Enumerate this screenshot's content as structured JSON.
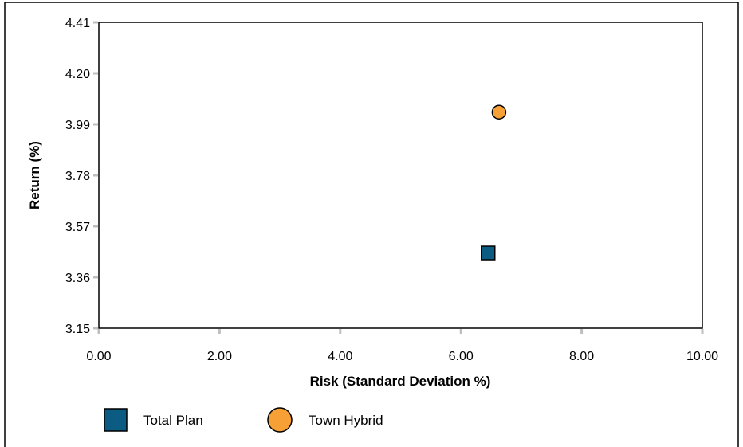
{
  "chart_data": {
    "type": "scatter",
    "title": "",
    "xlabel": "Risk (Standard Deviation %)",
    "ylabel": "Return (%)",
    "xlim": [
      0,
      10
    ],
    "ylim": [
      3.15,
      4.41
    ],
    "x_ticks": [
      0,
      2,
      4,
      6,
      8,
      10
    ],
    "x_tick_labels": [
      "0.00",
      "2.00",
      "4.00",
      "6.00",
      "8.00",
      "10.00"
    ],
    "y_ticks": [
      3.15,
      3.36,
      3.57,
      3.78,
      3.99,
      4.2,
      4.41
    ],
    "y_tick_labels": [
      "3.15",
      "3.36",
      "3.57",
      "3.78",
      "3.99",
      "4.20",
      "4.41"
    ],
    "grid": false,
    "legend_position": "bottom-left",
    "series": [
      {
        "name": "Total Plan",
        "marker": "square",
        "color": "#0b5b82",
        "points": [
          {
            "x": 6.45,
            "y": 3.46
          }
        ]
      },
      {
        "name": "Town Hybrid",
        "marker": "circle",
        "color": "#f7a036",
        "points": [
          {
            "x": 6.63,
            "y": 4.04
          }
        ]
      }
    ]
  },
  "legend": {
    "items": [
      {
        "label": "Total Plan",
        "marker": "square",
        "color": "#0b5b82"
      },
      {
        "label": "Town Hybrid",
        "marker": "circle",
        "color": "#f7a036"
      }
    ]
  }
}
